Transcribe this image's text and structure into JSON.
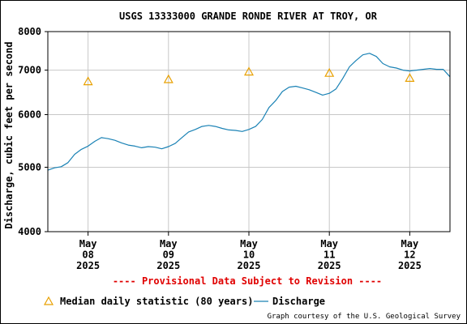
{
  "chart_data": {
    "type": "line",
    "title": "USGS 13333000 GRANDE RONDE RIVER AT TROY, OR",
    "ylabel": "Discharge, cubic feet per second",
    "xlabel": "",
    "y_scale": "log",
    "ylim": [
      4000,
      8000
    ],
    "y_ticks": [
      4000,
      5000,
      6000,
      7000,
      8000
    ],
    "y_tick_labels": [
      "4000",
      "5000",
      "6000",
      "7000",
      "8000"
    ],
    "xlim": [
      "2025-05-07T12:00",
      "2025-05-12T12:00"
    ],
    "x_ticks": [
      {
        "date": "2025-05-08T00:00",
        "label_lines": [
          "May",
          "08",
          "2025"
        ]
      },
      {
        "date": "2025-05-09T00:00",
        "label_lines": [
          "May",
          "09",
          "2025"
        ]
      },
      {
        "date": "2025-05-10T00:00",
        "label_lines": [
          "May",
          "10",
          "2025"
        ]
      },
      {
        "date": "2025-05-11T00:00",
        "label_lines": [
          "May",
          "11",
          "2025"
        ]
      },
      {
        "date": "2025-05-12T00:00",
        "label_lines": [
          "May",
          "12",
          "2025"
        ]
      }
    ],
    "grid": true,
    "legend_position": "bottom",
    "series": [
      {
        "name": "Discharge",
        "color": "#1a82b5",
        "marker": "line",
        "points": [
          [
            "2025-05-07T12:00",
            4950
          ],
          [
            "2025-05-07T14:00",
            4990
          ],
          [
            "2025-05-07T16:00",
            5010
          ],
          [
            "2025-05-07T18:00",
            5080
          ],
          [
            "2025-05-07T20:00",
            5230
          ],
          [
            "2025-05-07T22:00",
            5320
          ],
          [
            "2025-05-08T00:00",
            5380
          ],
          [
            "2025-05-08T02:00",
            5470
          ],
          [
            "2025-05-08T04:00",
            5540
          ],
          [
            "2025-05-08T06:00",
            5520
          ],
          [
            "2025-05-08T08:00",
            5490
          ],
          [
            "2025-05-08T10:00",
            5440
          ],
          [
            "2025-05-08T12:00",
            5400
          ],
          [
            "2025-05-08T14:00",
            5380
          ],
          [
            "2025-05-08T16:00",
            5350
          ],
          [
            "2025-05-08T18:00",
            5370
          ],
          [
            "2025-05-08T20:00",
            5360
          ],
          [
            "2025-05-08T22:00",
            5330
          ],
          [
            "2025-05-09T00:00",
            5370
          ],
          [
            "2025-05-09T02:00",
            5430
          ],
          [
            "2025-05-09T04:00",
            5540
          ],
          [
            "2025-05-09T06:00",
            5650
          ],
          [
            "2025-05-09T08:00",
            5700
          ],
          [
            "2025-05-09T10:00",
            5760
          ],
          [
            "2025-05-09T12:00",
            5780
          ],
          [
            "2025-05-09T14:00",
            5760
          ],
          [
            "2025-05-09T16:00",
            5720
          ],
          [
            "2025-05-09T18:00",
            5690
          ],
          [
            "2025-05-09T20:00",
            5680
          ],
          [
            "2025-05-09T22:00",
            5660
          ],
          [
            "2025-05-10T00:00",
            5700
          ],
          [
            "2025-05-10T02:00",
            5760
          ],
          [
            "2025-05-10T04:00",
            5900
          ],
          [
            "2025-05-10T06:00",
            6150
          ],
          [
            "2025-05-10T08:00",
            6300
          ],
          [
            "2025-05-10T10:00",
            6500
          ],
          [
            "2025-05-10T12:00",
            6600
          ],
          [
            "2025-05-10T14:00",
            6620
          ],
          [
            "2025-05-10T16:00",
            6580
          ],
          [
            "2025-05-10T18:00",
            6540
          ],
          [
            "2025-05-10T20:00",
            6480
          ],
          [
            "2025-05-10T22:00",
            6420
          ],
          [
            "2025-05-11T00:00",
            6460
          ],
          [
            "2025-05-11T02:00",
            6560
          ],
          [
            "2025-05-11T04:00",
            6800
          ],
          [
            "2025-05-11T06:00",
            7080
          ],
          [
            "2025-05-11T08:00",
            7240
          ],
          [
            "2025-05-11T10:00",
            7380
          ],
          [
            "2025-05-11T12:00",
            7420
          ],
          [
            "2025-05-11T14:00",
            7340
          ],
          [
            "2025-05-11T16:00",
            7160
          ],
          [
            "2025-05-11T18:00",
            7080
          ],
          [
            "2025-05-11T20:00",
            7050
          ],
          [
            "2025-05-11T22:00",
            7000
          ],
          [
            "2025-05-12T00:00",
            6980
          ],
          [
            "2025-05-12T02:00",
            7000
          ],
          [
            "2025-05-12T04:00",
            7020
          ],
          [
            "2025-05-12T06:00",
            7040
          ],
          [
            "2025-05-12T08:00",
            7020
          ],
          [
            "2025-05-12T10:00",
            7020
          ],
          [
            "2025-05-12T12:00",
            6840
          ]
        ]
      },
      {
        "name": "Median daily statistic (80 years)",
        "color": "#e8a000",
        "marker": "triangle",
        "points": [
          [
            "2025-05-08T00:00",
            6730
          ],
          [
            "2025-05-09T00:00",
            6780
          ],
          [
            "2025-05-10T00:00",
            6960
          ],
          [
            "2025-05-11T00:00",
            6930
          ],
          [
            "2025-05-12T00:00",
            6810
          ]
        ]
      }
    ],
    "provisional_note": "---- Provisional Data Subject to Revision ----",
    "legend": {
      "median_label": "Median daily statistic (80 years)",
      "discharge_label": "Discharge"
    },
    "credit": "Graph courtesy of the U.S. Geological Survey"
  }
}
